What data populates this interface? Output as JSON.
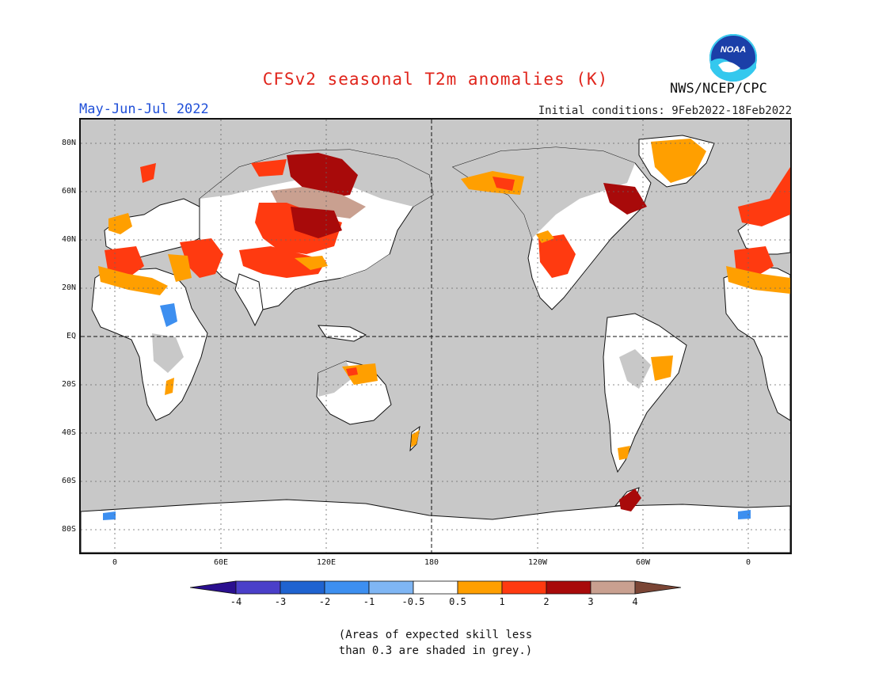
{
  "header": {
    "title": "CFSv2 seasonal T2m anomalies (K)",
    "season": "May-Jun-Jul 2022",
    "initial_conditions": "Initial conditions: 9Feb2022-18Feb2022",
    "agency": "NWS/NCEP/CPC",
    "logo_text": "NOAA"
  },
  "map": {
    "lat_labels": [
      "80N",
      "60N",
      "40N",
      "20N",
      "EQ",
      "20S",
      "40S",
      "60S",
      "80S"
    ],
    "lon_labels": [
      "0",
      "60E",
      "120E",
      "180",
      "120W",
      "60W",
      "0"
    ],
    "land_color": "#ffffff",
    "ocean_color": "#c8c8c8"
  },
  "colorbar": {
    "labels": [
      "-4",
      "-3",
      "-2",
      "-1",
      "-0.5",
      "0.5",
      "1",
      "2",
      "3",
      "4"
    ],
    "colors": [
      "#2a0f8f",
      "#4a3fc9",
      "#1f63d0",
      "#3d8ff0",
      "#7fb6f4",
      "#ffffff",
      "#ff9f00",
      "#ff3a10",
      "#a80a0a",
      "#c9a090",
      "#7a4535"
    ]
  },
  "note": {
    "line1": "(Areas of expected skill less",
    "line2": "than 0.3 are shaded in grey.)"
  }
}
